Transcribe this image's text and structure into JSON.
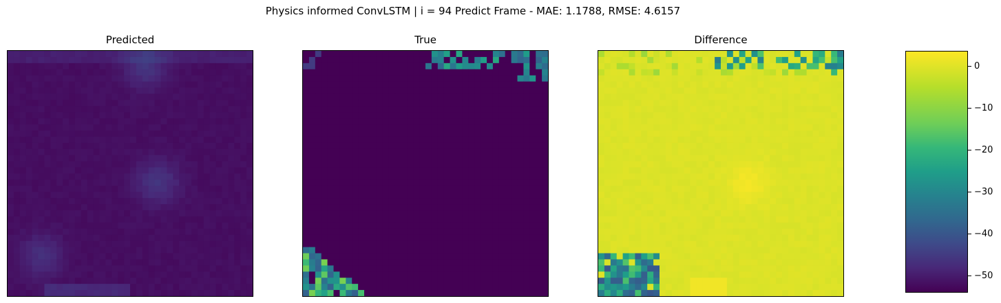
{
  "figure": {
    "suptitle": "Physics informed ConvLSTM | i = 94 Predict Frame - MAE: 1.1788, RMSE: 4.6157"
  },
  "chart_data": {
    "type": "heatmap",
    "colormap": "viridis",
    "vmin": -54,
    "vmax": 4,
    "panels": [
      {
        "title": "Predicted",
        "background_value": -52,
        "features": [
          {
            "label": "top-center blob",
            "value": -46
          },
          {
            "label": "center-right blob",
            "value": -46
          },
          {
            "label": "bottom-left blob",
            "value": -47
          },
          {
            "label": "bottom edge spots",
            "value": -47
          }
        ]
      },
      {
        "title": "True",
        "background_value": -54,
        "features": [
          {
            "label": "top-right cluster",
            "value": -30
          },
          {
            "label": "bottom-left cluster",
            "value": -25
          }
        ]
      },
      {
        "title": "Difference",
        "background_value": 0,
        "features": [
          {
            "label": "top-right cluster",
            "value": -25
          },
          {
            "label": "bottom-left cluster",
            "value": -28
          },
          {
            "label": "center-right bright spot",
            "value": 3
          }
        ]
      }
    ],
    "colorbar": {
      "ticks": [
        "0",
        "−10",
        "−20",
        "−30",
        "−40",
        "−50"
      ],
      "tick_values": [
        0,
        -10,
        -20,
        -30,
        -40,
        -50
      ]
    }
  }
}
